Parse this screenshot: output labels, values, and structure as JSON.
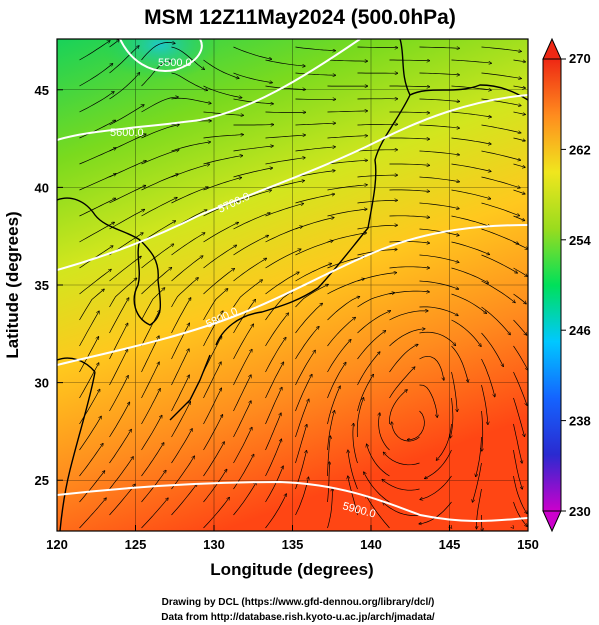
{
  "title": "MSM 12Z11May2024 (500.0hPa)",
  "x_axis": {
    "label": "Longitude (degrees)",
    "range": [
      120,
      150
    ],
    "ticks": [
      120,
      125,
      130,
      135,
      140,
      145,
      150
    ]
  },
  "y_axis": {
    "label": "Latitude  (degrees)",
    "range": [
      22.4,
      47.6
    ],
    "ticks": [
      25,
      30,
      35,
      40,
      45
    ]
  },
  "colorbar": {
    "range": [
      230,
      270
    ],
    "labels": [
      270,
      262,
      254,
      246,
      238,
      230
    ],
    "colors_hex": [
      "#cc00cc",
      "#2a2ad0",
      "#00b4ff",
      "#00e05a",
      "#9adc1e",
      "#e6e61e",
      "#ffa01e",
      "#ff5014",
      "#ee2814"
    ]
  },
  "contours": [
    {
      "label": "5500.0"
    },
    {
      "label": "5600.0"
    },
    {
      "label": "5700.0"
    },
    {
      "label": "5800.0"
    },
    {
      "label": "5900.0"
    }
  ],
  "credits": {
    "line1": "Drawing by DCL (https://www.gfd-dennou.org/library/dcl/)",
    "line2": "Data from http://database.rish.kyoto-u.ac.jp/arch/jmadata/"
  }
}
